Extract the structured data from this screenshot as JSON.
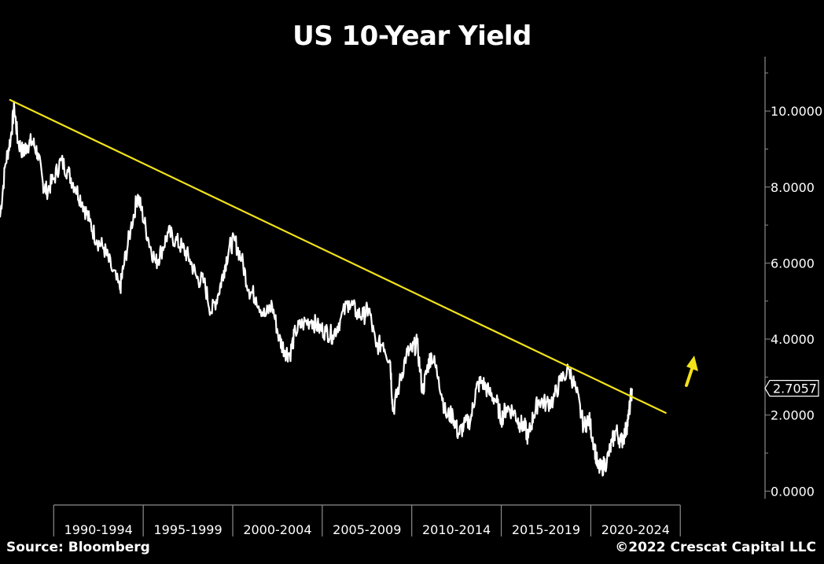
{
  "colors": {
    "background": "#000000",
    "series": "#ffffff",
    "trendline": "#f2e21a",
    "arrow": "#f2e21a",
    "axis": "#8c8c8c"
  },
  "footer": {
    "source": "Source: Bloomberg",
    "copyright": "©2022 Crescat Capital LLC"
  },
  "chart_data": {
    "type": "line",
    "title": "US 10-Year Yield",
    "xlabel": "",
    "ylabel": "",
    "xlim": [
      1987.0,
      2026.0
    ],
    "ylim": [
      -0.2,
      11.1
    ],
    "yticks": [
      0,
      2,
      4,
      6,
      8,
      10
    ],
    "ytick_labels": [
      "0.0000",
      "2.0000",
      "4.0000",
      "6.0000",
      "8.0000",
      "10.0000"
    ],
    "x_period_labels": [
      "1990-1994",
      "1995-1999",
      "2000-2004",
      "2005-2009",
      "2010-2014",
      "2015-2019",
      "2020-2024"
    ],
    "x_period_starts": [
      1990,
      1995,
      2000,
      2005,
      2010,
      2015,
      2020,
      2025
    ],
    "last_value_label": "2.7057",
    "last_value": 2.7057,
    "grid": false,
    "series": [
      {
        "x": [
          1987.0,
          1987.3,
          1987.6,
          1987.8,
          1988.0,
          1988.3,
          1988.5,
          1988.8,
          1989.1,
          1989.4,
          1989.6,
          1990.0,
          1990.4,
          1990.8,
          1991.2,
          1991.6,
          1992.0,
          1992.4,
          1992.8,
          1993.2,
          1993.7,
          1993.9,
          1994.3,
          1994.7,
          1994.9,
          1995.3,
          1995.7,
          1996.0,
          1996.4,
          1996.8,
          1997.2,
          1997.6,
          1998.0,
          1998.4,
          1998.8,
          1999.2,
          1999.5,
          1999.8,
          2000.1,
          2000.5,
          2000.9,
          2001.3,
          2001.8,
          2002.2,
          2002.6,
          2002.9,
          2003.2,
          2003.5,
          2003.9,
          2004.4,
          2004.8,
          2005.2,
          2005.6,
          2006.0,
          2006.5,
          2006.9,
          2007.3,
          2007.6,
          2008.0,
          2008.4,
          2008.8,
          2008.95,
          2009.3,
          2009.7,
          2010.0,
          2010.3,
          2010.6,
          2010.9,
          2011.1,
          2011.5,
          2011.9,
          2012.3,
          2012.6,
          2012.9,
          2013.3,
          2013.6,
          2013.9,
          2014.3,
          2014.7,
          2015.0,
          2015.3,
          2015.7,
          2016.0,
          2016.3,
          2016.5,
          2016.8,
          2017.1,
          2017.5,
          2017.9,
          2018.3,
          2018.8,
          2019.2,
          2019.6,
          2019.9,
          2020.2,
          2020.4,
          2020.6,
          2020.9,
          2021.2,
          2021.4,
          2021.7,
          2021.9,
          2022.1,
          2022.3
        ],
        "y": [
          7.2,
          8.6,
          9.3,
          10.1,
          9.2,
          8.9,
          9.1,
          9.2,
          8.9,
          8.1,
          7.9,
          8.2,
          8.7,
          8.4,
          8.0,
          7.6,
          7.1,
          6.6,
          6.4,
          5.9,
          5.3,
          5.9,
          6.9,
          7.8,
          7.4,
          6.6,
          6.0,
          6.3,
          6.8,
          6.6,
          6.4,
          6.1,
          5.6,
          5.5,
          4.7,
          5.2,
          5.8,
          6.4,
          6.6,
          6.1,
          5.3,
          5.1,
          4.6,
          4.9,
          4.0,
          3.7,
          3.6,
          4.2,
          4.4,
          4.5,
          4.3,
          4.2,
          4.1,
          4.5,
          5.0,
          4.7,
          4.6,
          4.8,
          3.8,
          3.9,
          3.4,
          2.1,
          2.8,
          3.6,
          3.7,
          3.9,
          2.6,
          3.3,
          3.6,
          3.0,
          2.0,
          2.0,
          1.5,
          1.7,
          1.9,
          2.7,
          2.9,
          2.6,
          2.4,
          1.9,
          2.2,
          2.1,
          1.8,
          1.7,
          1.4,
          2.0,
          2.4,
          2.3,
          2.4,
          2.9,
          3.2,
          2.6,
          1.7,
          1.9,
          1.2,
          0.6,
          0.6,
          0.8,
          1.3,
          1.6,
          1.3,
          1.5,
          1.9,
          2.7
        ]
      }
    ],
    "trendline": {
      "from": [
        1987.0,
        10.3
      ],
      "to": [
        2025.1,
        2.05
      ]
    }
  }
}
